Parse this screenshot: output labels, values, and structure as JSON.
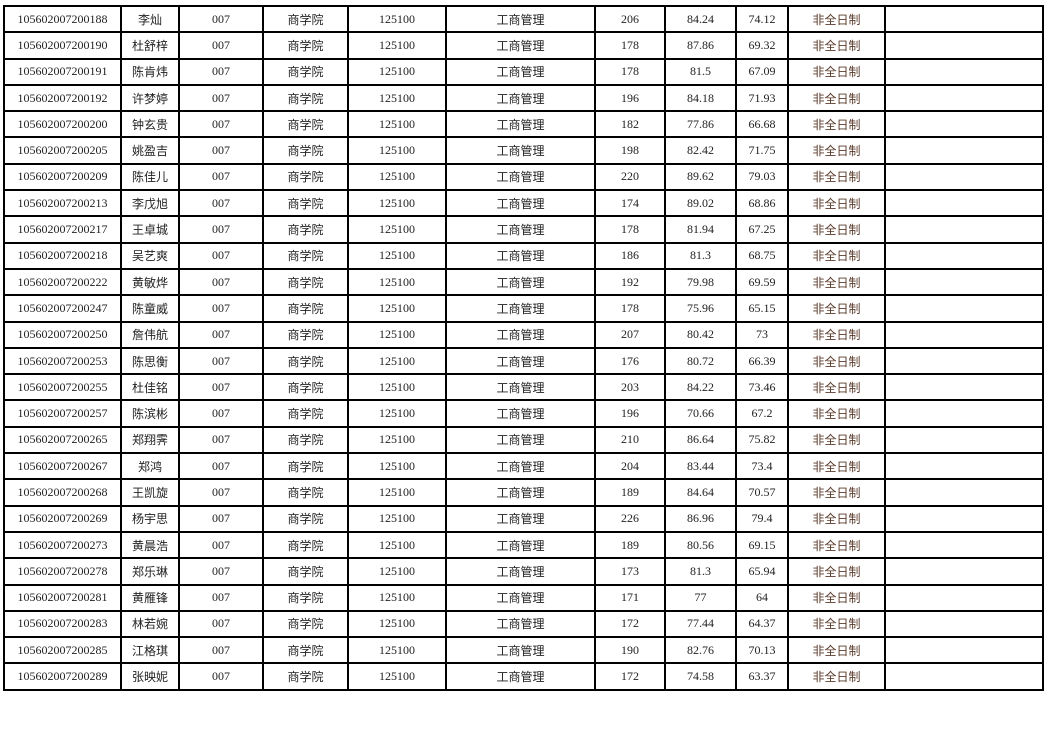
{
  "table": {
    "rows": [
      [
        "105602007200188",
        "李灿",
        "007",
        "商学院",
        "125100",
        "工商管理",
        "206",
        "84.24",
        "74.12",
        "非全日制",
        ""
      ],
      [
        "105602007200190",
        "杜舒梓",
        "007",
        "商学院",
        "125100",
        "工商管理",
        "178",
        "87.86",
        "69.32",
        "非全日制",
        ""
      ],
      [
        "105602007200191",
        "陈肯炜",
        "007",
        "商学院",
        "125100",
        "工商管理",
        "178",
        "81.5",
        "67.09",
        "非全日制",
        ""
      ],
      [
        "105602007200192",
        "许梦婷",
        "007",
        "商学院",
        "125100",
        "工商管理",
        "196",
        "84.18",
        "71.93",
        "非全日制",
        ""
      ],
      [
        "105602007200200",
        "钟玄贵",
        "007",
        "商学院",
        "125100",
        "工商管理",
        "182",
        "77.86",
        "66.68",
        "非全日制",
        ""
      ],
      [
        "105602007200205",
        "姚盈吉",
        "007",
        "商学院",
        "125100",
        "工商管理",
        "198",
        "82.42",
        "71.75",
        "非全日制",
        ""
      ],
      [
        "105602007200209",
        "陈佳儿",
        "007",
        "商学院",
        "125100",
        "工商管理",
        "220",
        "89.62",
        "79.03",
        "非全日制",
        ""
      ],
      [
        "105602007200213",
        "李戊旭",
        "007",
        "商学院",
        "125100",
        "工商管理",
        "174",
        "89.02",
        "68.86",
        "非全日制",
        ""
      ],
      [
        "105602007200217",
        "王卓城",
        "007",
        "商学院",
        "125100",
        "工商管理",
        "178",
        "81.94",
        "67.25",
        "非全日制",
        ""
      ],
      [
        "105602007200218",
        "吴艺爽",
        "007",
        "商学院",
        "125100",
        "工商管理",
        "186",
        "81.3",
        "68.75",
        "非全日制",
        ""
      ],
      [
        "105602007200222",
        "黄敏烨",
        "007",
        "商学院",
        "125100",
        "工商管理",
        "192",
        "79.98",
        "69.59",
        "非全日制",
        ""
      ],
      [
        "105602007200247",
        "陈童威",
        "007",
        "商学院",
        "125100",
        "工商管理",
        "178",
        "75.96",
        "65.15",
        "非全日制",
        ""
      ],
      [
        "105602007200250",
        "詹伟航",
        "007",
        "商学院",
        "125100",
        "工商管理",
        "207",
        "80.42",
        "73",
        "非全日制",
        ""
      ],
      [
        "105602007200253",
        "陈思衡",
        "007",
        "商学院",
        "125100",
        "工商管理",
        "176",
        "80.72",
        "66.39",
        "非全日制",
        ""
      ],
      [
        "105602007200255",
        "杜佳铭",
        "007",
        "商学院",
        "125100",
        "工商管理",
        "203",
        "84.22",
        "73.46",
        "非全日制",
        ""
      ],
      [
        "105602007200257",
        "陈滨彬",
        "007",
        "商学院",
        "125100",
        "工商管理",
        "196",
        "70.66",
        "67.2",
        "非全日制",
        ""
      ],
      [
        "105602007200265",
        "郑翔霁",
        "007",
        "商学院",
        "125100",
        "工商管理",
        "210",
        "86.64",
        "75.82",
        "非全日制",
        ""
      ],
      [
        "105602007200267",
        "郑鸿",
        "007",
        "商学院",
        "125100",
        "工商管理",
        "204",
        "83.44",
        "73.4",
        "非全日制",
        ""
      ],
      [
        "105602007200268",
        "王凯旋",
        "007",
        "商学院",
        "125100",
        "工商管理",
        "189",
        "84.64",
        "70.57",
        "非全日制",
        ""
      ],
      [
        "105602007200269",
        "杨宇思",
        "007",
        "商学院",
        "125100",
        "工商管理",
        "226",
        "86.96",
        "79.4",
        "非全日制",
        ""
      ],
      [
        "105602007200273",
        "黄晨浩",
        "007",
        "商学院",
        "125100",
        "工商管理",
        "189",
        "80.56",
        "69.15",
        "非全日制",
        ""
      ],
      [
        "105602007200278",
        "郑乐琳",
        "007",
        "商学院",
        "125100",
        "工商管理",
        "173",
        "81.3",
        "65.94",
        "非全日制",
        ""
      ],
      [
        "105602007200281",
        "黄雁锋",
        "007",
        "商学院",
        "125100",
        "工商管理",
        "171",
        "77",
        "64",
        "非全日制",
        ""
      ],
      [
        "105602007200283",
        "林若婉",
        "007",
        "商学院",
        "125100",
        "工商管理",
        "172",
        "77.44",
        "64.37",
        "非全日制",
        ""
      ],
      [
        "105602007200285",
        "江格琪",
        "007",
        "商学院",
        "125100",
        "工商管理",
        "190",
        "82.76",
        "70.13",
        "非全日制",
        ""
      ],
      [
        "105602007200289",
        "张映妮",
        "007",
        "商学院",
        "125100",
        "工商管理",
        "172",
        "74.58",
        "63.37",
        "非全日制",
        ""
      ]
    ]
  }
}
